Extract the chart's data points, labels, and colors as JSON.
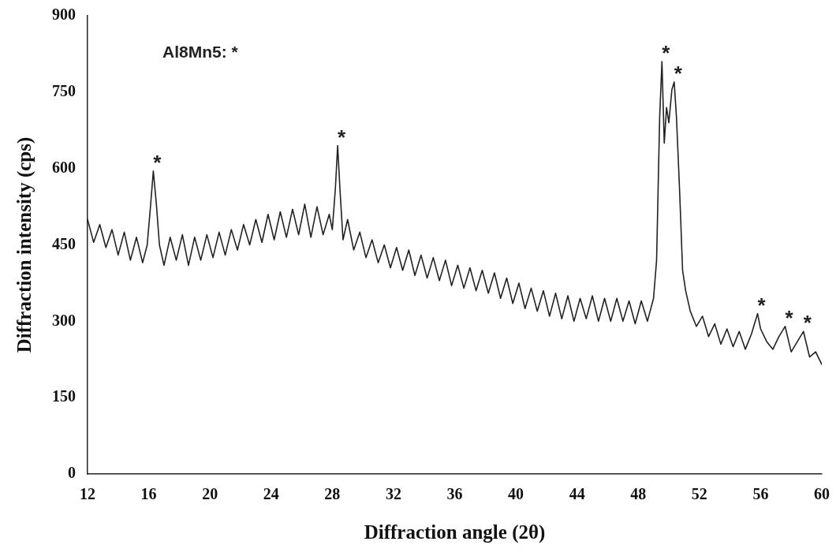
{
  "chart_data": {
    "type": "line",
    "xlabel": "Diffraction angle (2θ)",
    "ylabel": "Diffraction intensity (cps)",
    "xlim": [
      12,
      60
    ],
    "xticks": [
      12,
      16,
      20,
      24,
      28,
      32,
      36,
      40,
      44,
      48,
      52,
      56,
      60
    ],
    "ylim": [
      0,
      900
    ],
    "yticks": [
      0,
      150,
      300,
      450,
      600,
      750,
      900
    ],
    "grid": false,
    "legend": false,
    "marker": "none",
    "line_style": "solid",
    "annotations": [
      "Al8Mn5: *",
      {
        "text": "*",
        "x": 16.3,
        "y": 595
      },
      {
        "text": "*",
        "x": 28.35,
        "y": 645
      },
      {
        "text": "*",
        "x": 49.55,
        "y": 810
      },
      {
        "text": "*",
        "x": 50.35,
        "y": 770
      },
      {
        "text": "*",
        "x": 55.8,
        "y": 315
      },
      {
        "text": "*",
        "x": 57.6,
        "y": 290
      },
      {
        "text": "*",
        "x": 58.8,
        "y": 280
      }
    ],
    "series": [
      {
        "color": "#222222",
        "x": [
          12,
          12.4,
          12.8,
          13.2,
          13.6,
          14,
          14.4,
          14.8,
          15.2,
          15.6,
          15.9,
          16.1,
          16.3,
          16.5,
          16.7,
          17,
          17.4,
          17.8,
          18.2,
          18.6,
          19,
          19.4,
          19.8,
          20.2,
          20.6,
          21,
          21.4,
          21.8,
          22.2,
          22.6,
          23,
          23.4,
          23.8,
          24.2,
          24.6,
          25,
          25.4,
          25.8,
          26.2,
          26.6,
          27,
          27.4,
          27.8,
          28,
          28.2,
          28.35,
          28.5,
          28.7,
          29,
          29.4,
          29.8,
          30.2,
          30.6,
          31,
          31.4,
          31.8,
          32.2,
          32.6,
          33,
          33.4,
          33.8,
          34.2,
          34.6,
          35,
          35.4,
          35.8,
          36.2,
          36.6,
          37,
          37.4,
          37.8,
          38.2,
          38.6,
          39,
          39.4,
          39.8,
          40.2,
          40.6,
          41,
          41.4,
          41.8,
          42.2,
          42.6,
          43,
          43.4,
          43.8,
          44.2,
          44.6,
          45,
          45.4,
          45.8,
          46.2,
          46.6,
          47,
          47.4,
          47.8,
          48.2,
          48.6,
          49,
          49.2,
          49.4,
          49.55,
          49.7,
          49.85,
          50,
          50.2,
          50.35,
          50.5,
          50.7,
          50.9,
          51.1,
          51.4,
          51.8,
          52.2,
          52.6,
          53,
          53.4,
          53.8,
          54.2,
          54.6,
          55,
          55.4,
          55.8,
          56,
          56.4,
          56.8,
          57.2,
          57.6,
          58,
          58.4,
          58.8,
          59.2,
          59.6,
          60
        ],
        "values": [
          500,
          455,
          490,
          445,
          480,
          430,
          475,
          420,
          465,
          415,
          450,
          520,
          595,
          530,
          450,
          410,
          465,
          420,
          470,
          410,
          465,
          420,
          470,
          425,
          475,
          430,
          480,
          440,
          490,
          450,
          500,
          455,
          510,
          460,
          515,
          465,
          520,
          470,
          530,
          465,
          525,
          470,
          510,
          480,
          560,
          645,
          560,
          460,
          500,
          440,
          475,
          425,
          460,
          415,
          450,
          405,
          445,
          400,
          440,
          390,
          430,
          385,
          425,
          380,
          420,
          370,
          410,
          365,
          405,
          360,
          400,
          355,
          395,
          345,
          385,
          335,
          375,
          325,
          365,
          320,
          360,
          310,
          355,
          305,
          350,
          300,
          345,
          305,
          350,
          300,
          345,
          300,
          345,
          300,
          340,
          295,
          340,
          300,
          345,
          420,
          700,
          810,
          650,
          720,
          690,
          755,
          770,
          700,
          560,
          400,
          360,
          320,
          290,
          310,
          270,
          295,
          255,
          285,
          250,
          280,
          245,
          275,
          315,
          285,
          260,
          245,
          270,
          290,
          240,
          260,
          280,
          230,
          240,
          215
        ]
      }
    ]
  }
}
